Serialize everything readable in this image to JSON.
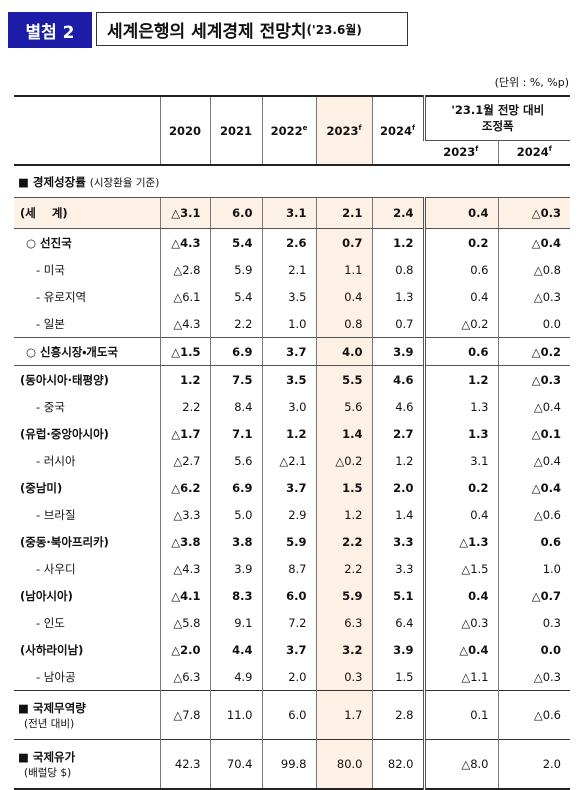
{
  "header": {
    "badge": "별첨 2",
    "title": "세계은행의 세계경제 전망치",
    "title_suffix": "('23.6월)"
  },
  "unit": "(단위 : %, %p)",
  "table": {
    "columns": [
      {
        "year": "2020"
      },
      {
        "year": "2021"
      },
      {
        "year": "2022",
        "sup": "e"
      },
      {
        "year": "2023",
        "sup": "f"
      },
      {
        "year": "2024",
        "sup": "f"
      }
    ],
    "adjustment": {
      "title": [
        "'23.1월 전망 대비",
        "조정폭"
      ],
      "columns": [
        {
          "year": "2023",
          "sup": "f"
        },
        {
          "year": "2024",
          "sup": "f"
        }
      ]
    },
    "growth": {
      "title": "■ 경제성장률",
      "note": "(시장환율 기준)",
      "rows": [
        {
          "label": "(세    계)",
          "values": [
            "△3.1",
            "6.0",
            "3.1",
            "2.1",
            "2.4",
            "0.4",
            "△0.3"
          ]
        },
        {
          "label": "○ 선진국",
          "values": [
            "△4.3",
            "5.4",
            "2.6",
            "0.7",
            "1.2",
            "0.2",
            "△0.4"
          ]
        },
        {
          "label": "- 미국",
          "values": [
            "△2.8",
            "5.9",
            "2.1",
            "1.1",
            "0.8",
            "0.6",
            "△0.8"
          ]
        },
        {
          "label": "- 유로지역",
          "values": [
            "△6.1",
            "5.4",
            "3.5",
            "0.4",
            "1.3",
            "0.4",
            "△0.3"
          ]
        },
        {
          "label": "- 일본",
          "values": [
            "△4.3",
            "2.2",
            "1.0",
            "0.8",
            "0.7",
            "△0.2",
            "0.0"
          ]
        },
        {
          "label": "○ 신흥시장・개도국",
          "values": [
            "△1.5",
            "6.9",
            "3.7",
            "4.0",
            "3.9",
            "0.6",
            "△0.2"
          ]
        },
        {
          "label": "(동아시아·태평양)",
          "values": [
            "1.2",
            "7.5",
            "3.5",
            "5.5",
            "4.6",
            "1.2",
            "△0.3"
          ]
        },
        {
          "label": "- 중국",
          "values": [
            "2.2",
            "8.4",
            "3.0",
            "5.6",
            "4.6",
            "1.3",
            "△0.4"
          ]
        },
        {
          "label": "(유럽·중앙아시아)",
          "values": [
            "△1.7",
            "7.1",
            "1.2",
            "1.4",
            "2.7",
            "1.3",
            "△0.1"
          ]
        },
        {
          "label": "- 러시아",
          "values": [
            "△2.7",
            "5.6",
            "△2.1",
            "△0.2",
            "1.2",
            "3.1",
            "△0.4"
          ]
        },
        {
          "label": "(중남미)",
          "values": [
            "△6.2",
            "6.9",
            "3.7",
            "1.5",
            "2.0",
            "0.2",
            "△0.4"
          ]
        },
        {
          "label": "- 브라질",
          "values": [
            "△3.3",
            "5.0",
            "2.9",
            "1.2",
            "1.4",
            "0.4",
            "△0.6"
          ]
        },
        {
          "label": "(중동·북아프리카)",
          "values": [
            "△3.8",
            "3.8",
            "5.9",
            "2.2",
            "3.3",
            "△1.3",
            "0.6"
          ]
        },
        {
          "label": "- 사우디",
          "values": [
            "△4.3",
            "3.9",
            "8.7",
            "2.2",
            "3.3",
            "△1.5",
            "1.0"
          ]
        },
        {
          "label": "(남아시아)",
          "values": [
            "△4.1",
            "8.3",
            "6.0",
            "5.9",
            "5.1",
            "0.4",
            "△0.7"
          ]
        },
        {
          "label": "- 인도",
          "values": [
            "△5.8",
            "9.1",
            "7.2",
            "6.3",
            "6.4",
            "△0.3",
            "0.3"
          ]
        },
        {
          "label": "(사하라이남)",
          "values": [
            "△2.0",
            "4.4",
            "3.7",
            "3.2",
            "3.9",
            "△0.4",
            "0.0"
          ]
        },
        {
          "label": "- 남아공",
          "values": [
            "△6.3",
            "4.9",
            "2.0",
            "0.3",
            "1.5",
            "△1.1",
            "△0.3"
          ]
        }
      ]
    },
    "others": [
      {
        "title": "■ 국제무역량",
        "note": "(전년 대비)",
        "values": [
          "△7.8",
          "11.0",
          "6.0",
          "1.7",
          "2.8",
          "0.1",
          "△0.6"
        ]
      },
      {
        "title": "■ 국제유가",
        "note": "(배럴당 $)",
        "values": [
          "42.3",
          "70.4",
          "99.8",
          "80.0",
          "82.0",
          "△8.0",
          "2.0"
        ]
      }
    ]
  }
}
